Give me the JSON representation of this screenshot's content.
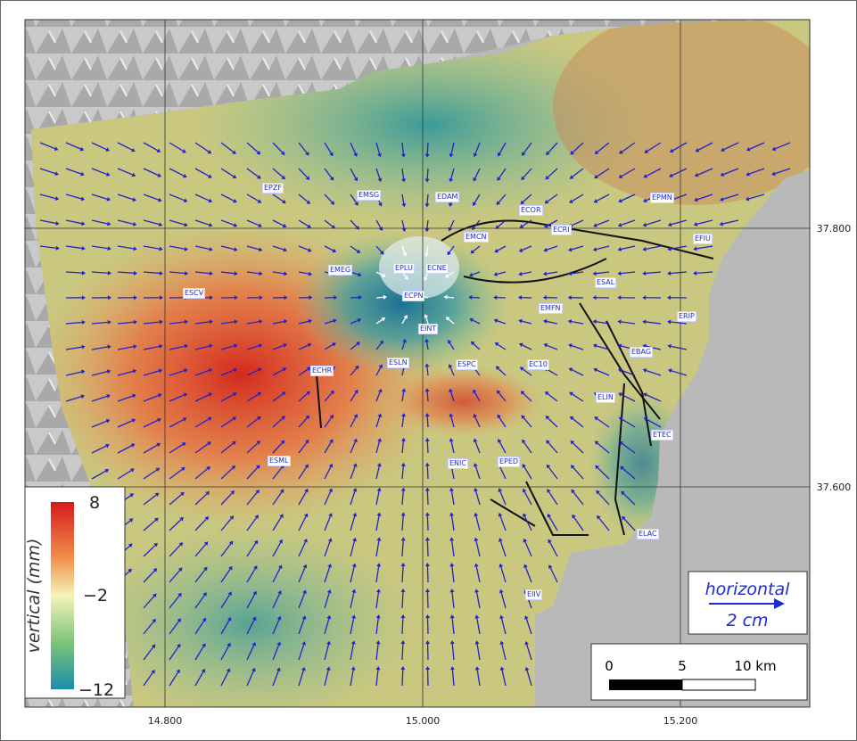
{
  "map": {
    "axes": {
      "x_ticks": [
        "14.800",
        "15.000",
        "15.200"
      ],
      "y_ticks": [
        "37.800",
        "37.600"
      ]
    },
    "colorbar": {
      "title": "vertical (mm)",
      "labels": [
        "8",
        "−2",
        "−12"
      ]
    },
    "legend": {
      "title": "horizontal",
      "scale": "2 cm"
    },
    "scale_bar": {
      "labels": [
        "0",
        "5",
        "10 km"
      ]
    },
    "stations": [
      "EPZF",
      "EMSG",
      "EDAM",
      "ECOR",
      "ECRI",
      "EPMN",
      "EFIU",
      "EMCN",
      "EPLU",
      "ECNE",
      "EMEG",
      "ESCV",
      "ECPN",
      "ESAL",
      "EMFN",
      "EINT",
      "ERIP",
      "ECHR",
      "ESLN",
      "ESPC",
      "EC10",
      "EBAG",
      "ELIN",
      "ETEC",
      "ESML",
      "ENIC",
      "EPED",
      "ELAC",
      "EIIV"
    ]
  }
}
